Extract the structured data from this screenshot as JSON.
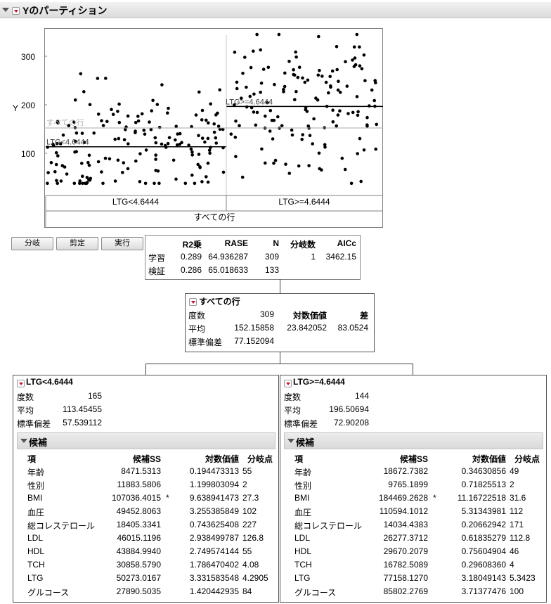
{
  "report": {
    "title": "Yのパーティション"
  },
  "plot": {
    "y_axis_label": "Y",
    "y_ticks": [
      "100",
      "200",
      "300"
    ],
    "overall_label": "すべての行",
    "left_mean_label": "LTG<4.6444",
    "right_mean_label": "LTG>=4.6444",
    "bottom_left_label": "LTG<4.6444",
    "bottom_right_label": "LTG>=4.6444",
    "bottom_root_label": "すべての行",
    "left_mean": 113.45455,
    "right_mean": 196.50694,
    "overall_mean": 152.15858
  },
  "buttons": {
    "split": "分岐",
    "prune": "剪定",
    "go": "実行"
  },
  "fit_summary": {
    "headers": [
      "R2乗",
      "RASE",
      "N",
      "分岐数",
      "AICc"
    ],
    "rows": [
      {
        "label": "学習",
        "r2": "0.289",
        "rase": "64.936287",
        "n": "309",
        "splits": "1",
        "aicc": "3462.15"
      },
      {
        "label": "検証",
        "r2": "0.286",
        "rase": "65.018633",
        "n": "133",
        "splits": "",
        "aicc": ""
      }
    ]
  },
  "root_node": {
    "title": "すべての行",
    "count_label": "度数",
    "count": "309",
    "logworth_label": "対数価値",
    "diff_label": "差",
    "mean_label": "平均",
    "mean": "152.15858",
    "logworth": "23.842052",
    "diff": "83.0524",
    "sd_label": "標準偏差",
    "sd": "77.152094"
  },
  "left_node": {
    "title": "LTG<4.6444",
    "count_label": "度数",
    "count": "165",
    "mean_label": "平均",
    "mean": "113.45455",
    "sd_label": "標準偏差",
    "sd": "57.539112",
    "candidates_title": "候補",
    "cand_headers": [
      "項",
      "候補SS",
      "対数価値",
      "分岐点"
    ],
    "candidates": [
      {
        "term": "年齢",
        "ss": "8471.5313",
        "star": "",
        "logworth": "0.194473313",
        "split": "55"
      },
      {
        "term": "性別",
        "ss": "11883.5806",
        "star": "",
        "logworth": "1.199803094",
        "split": "2"
      },
      {
        "term": "BMI",
        "ss": "107036.4015",
        "star": "*",
        "logworth": "9.638941473",
        "split": "27.3"
      },
      {
        "term": "血圧",
        "ss": "49452.8063",
        "star": "",
        "logworth": "3.255385849",
        "split": "102"
      },
      {
        "term": "総コレステロール",
        "ss": "18405.3341",
        "star": "",
        "logworth": "0.743625408",
        "split": "227"
      },
      {
        "term": "LDL",
        "ss": "46015.1196",
        "star": "",
        "logworth": "2.938499787",
        "split": "126.8"
      },
      {
        "term": "HDL",
        "ss": "43884.9940",
        "star": "",
        "logworth": "2.749574144",
        "split": "55"
      },
      {
        "term": "TCH",
        "ss": "30858.5790",
        "star": "",
        "logworth": "1.786470402",
        "split": "4.08"
      },
      {
        "term": "LTG",
        "ss": "50273.0167",
        "star": "",
        "logworth": "3.331583548",
        "split": "4.2905"
      },
      {
        "term": "グルコース",
        "ss": "27890.5035",
        "star": "",
        "logworth": "1.420442935",
        "split": "84"
      }
    ]
  },
  "right_node": {
    "title": "LTG>=4.6444",
    "count_label": "度数",
    "count": "144",
    "mean_label": "平均",
    "mean": "196.50694",
    "sd_label": "標準偏差",
    "sd": "72.90208",
    "candidates_title": "候補",
    "cand_headers": [
      "項",
      "候補SS",
      "対数価値",
      "分岐点"
    ],
    "candidates": [
      {
        "term": "年齢",
        "ss": "18672.7382",
        "star": "",
        "logworth": "0.34630856",
        "split": "49"
      },
      {
        "term": "性別",
        "ss": "9765.1899",
        "star": "",
        "logworth": "0.71825513",
        "split": "2"
      },
      {
        "term": "BMI",
        "ss": "184469.2628",
        "star": "*",
        "logworth": "11.16722518",
        "split": "31.6"
      },
      {
        "term": "血圧",
        "ss": "110594.1012",
        "star": "",
        "logworth": "5.31343981",
        "split": "112"
      },
      {
        "term": "総コレステロール",
        "ss": "14034.4383",
        "star": "",
        "logworth": "0.20662942",
        "split": "171"
      },
      {
        "term": "LDL",
        "ss": "26277.3712",
        "star": "",
        "logworth": "0.61835279",
        "split": "112.8"
      },
      {
        "term": "HDL",
        "ss": "29670.2079",
        "star": "",
        "logworth": "0.75604904",
        "split": "46"
      },
      {
        "term": "TCH",
        "ss": "16782.5089",
        "star": "",
        "logworth": "0.29608360",
        "split": "4"
      },
      {
        "term": "LTG",
        "ss": "77158.1270",
        "star": "",
        "logworth": "3.18049143",
        "split": "5.3423"
      },
      {
        "term": "グルコース",
        "ss": "85802.2769",
        "star": "",
        "logworth": "3.71377476",
        "split": "100"
      }
    ]
  },
  "colors": {
    "accent_red": "#c8102e",
    "grid": "#c0c0c0",
    "overall_line": "#a0a0a0"
  }
}
